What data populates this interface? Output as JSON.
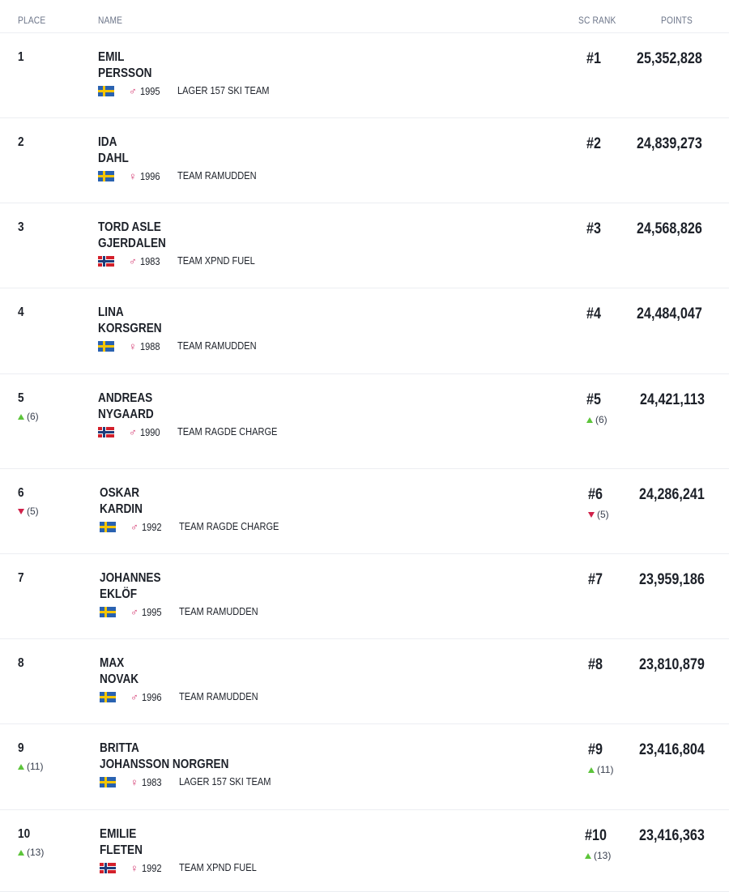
{
  "header": {
    "place": "PLACE",
    "name": "NAME",
    "sc_rank": "SC RANK",
    "points": "POINTS"
  },
  "rows": [
    {
      "place": "1",
      "first": "EMIL",
      "last": "PERSSON",
      "flag": "se",
      "gender": "♂",
      "year": "1995",
      "team": "LAGER 157 SKI TEAM",
      "rank": "#1",
      "points": "25,352,828",
      "place_move": "",
      "rank_move": "",
      "dir": ""
    },
    {
      "place": "2",
      "first": "IDA",
      "last": "DAHL",
      "flag": "se",
      "gender": "♀",
      "year": "1996",
      "team": "TEAM RAMUDDEN",
      "rank": "#2",
      "points": "24,839,273",
      "place_move": "",
      "rank_move": "",
      "dir": ""
    },
    {
      "place": "3",
      "first": "TORD ASLE",
      "last": "GJERDALEN",
      "flag": "no",
      "gender": "♂",
      "year": "1983",
      "team": "TEAM XPND FUEL",
      "rank": "#3",
      "points": "24,568,826",
      "place_move": "",
      "rank_move": "",
      "dir": ""
    },
    {
      "place": "4",
      "first": "LINA",
      "last": "KORSGREN",
      "flag": "se",
      "gender": "♀",
      "year": "1988",
      "team": "TEAM RAMUDDEN",
      "rank": "#4",
      "points": "24,484,047",
      "place_move": "",
      "rank_move": "",
      "dir": ""
    },
    {
      "place": "5",
      "first": "ANDREAS",
      "last": "NYGAARD",
      "flag": "no",
      "gender": "♂",
      "year": "1990",
      "team": "TEAM RAGDE CHARGE",
      "rank": "#5",
      "points": "24,421,113",
      "place_move": "(6)",
      "rank_move": "(6)",
      "dir": "up"
    },
    {
      "place": "6",
      "first": "OSKAR",
      "last": "KARDIN",
      "flag": "se",
      "gender": "♂",
      "year": "1992",
      "team": "TEAM RAGDE CHARGE",
      "rank": "#6",
      "points": "24,286,241",
      "place_move": "(5)",
      "rank_move": "(5)",
      "dir": "down"
    },
    {
      "place": "7",
      "first": "JOHANNES",
      "last": "EKLÖF",
      "flag": "se",
      "gender": "♂",
      "year": "1995",
      "team": "TEAM RAMUDDEN",
      "rank": "#7",
      "points": "23,959,186",
      "place_move": "",
      "rank_move": "",
      "dir": ""
    },
    {
      "place": "8",
      "first": "MAX",
      "last": "NOVAK",
      "flag": "se",
      "gender": "♂",
      "year": "1996",
      "team": "TEAM RAMUDDEN",
      "rank": "#8",
      "points": "23,810,879",
      "place_move": "",
      "rank_move": "",
      "dir": ""
    },
    {
      "place": "9",
      "first": "BRITTA",
      "last": "JOHANSSON NORGREN",
      "flag": "se",
      "gender": "♀",
      "year": "1983",
      "team": "LAGER 157 SKI TEAM",
      "rank": "#9",
      "points": "23,416,804",
      "place_move": "(11)",
      "rank_move": "(11)",
      "dir": "up"
    },
    {
      "place": "10",
      "first": "EMILIE",
      "last": "FLETEN",
      "flag": "no",
      "gender": "♀",
      "year": "1992",
      "team": "TEAM XPND FUEL",
      "rank": "#10",
      "points": "23,416,363",
      "place_move": "(13)",
      "rank_move": "(13)",
      "dir": "up"
    }
  ]
}
